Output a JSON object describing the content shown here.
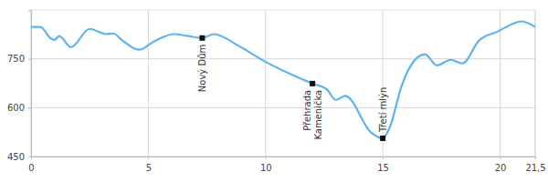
{
  "chart_data": {
    "type": "line",
    "x": [
      0,
      0.4,
      0.82,
      1.0,
      1.2,
      1.7,
      2.5,
      3.2,
      3.5,
      3.9,
      4.6,
      5.3,
      6.1,
      6.7,
      7.3,
      7.8,
      8.8,
      10,
      11.1,
      12,
      12.6,
      13,
      13.4,
      14.5,
      15,
      15.3,
      15.8,
      16.2,
      16.8,
      17.3,
      17.9,
      18.4,
      19.1,
      19.9,
      20.5,
      20.9,
      21.5
    ],
    "values": [
      848,
      848,
      814,
      808,
      820,
      786,
      842,
      826,
      828,
      806,
      778,
      806,
      826,
      820,
      814,
      826,
      792,
      741,
      702,
      674,
      657,
      624,
      636,
      524,
      506,
      540,
      666,
      730,
      764,
      730,
      747,
      736,
      806,
      834,
      856,
      865,
      848
    ],
    "color": "#5cb3ef",
    "xlim": [
      0,
      21.5
    ],
    "xticks": [
      0,
      5,
      10,
      15,
      20,
      {
        "value": 21.5,
        "label": "21,5"
      }
    ],
    "ylim": [
      450,
      900
    ],
    "yticks": [
      450,
      600,
      750
    ],
    "grid": true,
    "annotations": [
      {
        "x": 7.3,
        "y": 814,
        "label": [
          "Nový Dům"
        ]
      },
      {
        "x": 12,
        "y": 674,
        "label": [
          "Přehrada",
          "Kamenička"
        ]
      },
      {
        "x": 15,
        "y": 506,
        "label": [
          "Třetí mlýn"
        ]
      }
    ]
  }
}
